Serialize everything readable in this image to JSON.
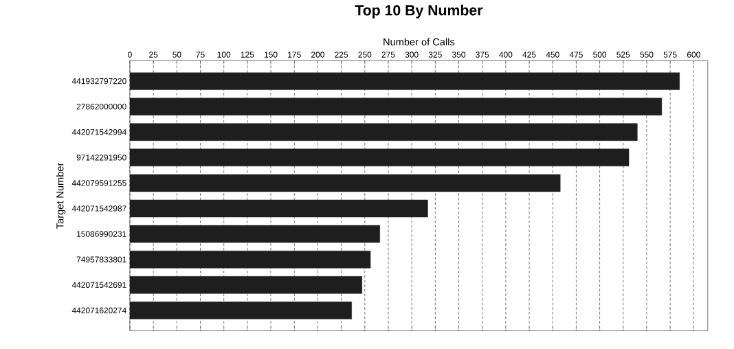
{
  "chart_data": {
    "type": "bar",
    "orientation": "horizontal",
    "title": "Top 10 By Number",
    "xlabel": "Number of Calls",
    "ylabel": "Target Number",
    "categories": [
      "441932797220",
      "27862000000",
      "442071542994",
      "97142291950",
      "442079591255",
      "442071542987",
      "15086990231",
      "74957833801",
      "442071542691",
      "442071620274"
    ],
    "values": [
      585,
      566,
      540,
      531,
      458,
      317,
      266,
      256,
      247,
      236
    ],
    "color": "#1e1e1e",
    "xlim": [
      0,
      615
    ],
    "xticks": [
      0,
      25,
      50,
      75,
      100,
      125,
      150,
      175,
      200,
      225,
      250,
      275,
      300,
      325,
      350,
      375,
      400,
      425,
      450,
      475,
      500,
      525,
      550,
      575,
      600
    ],
    "grid": "x"
  }
}
